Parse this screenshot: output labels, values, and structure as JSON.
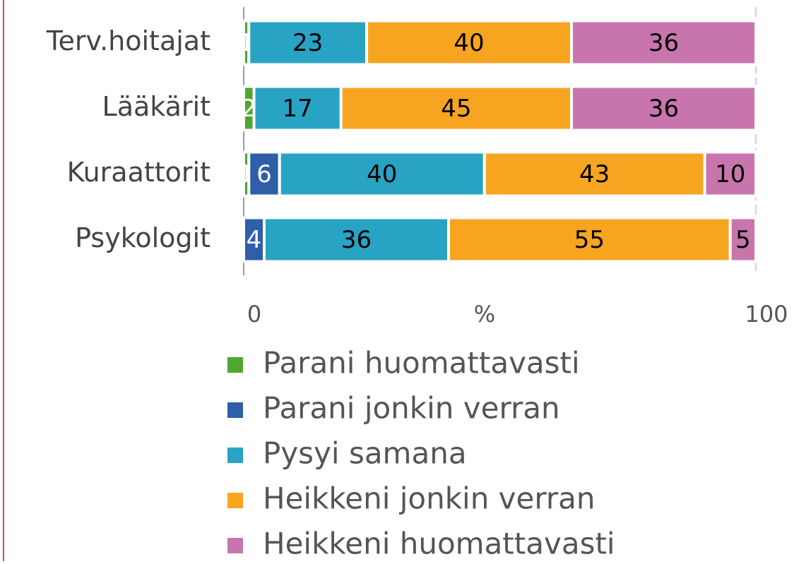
{
  "chart_data": {
    "type": "stacked_barh",
    "categories": [
      "Terv.hoitajat",
      "Lääkärit",
      "Kuraattorit",
      "Psykologit"
    ],
    "series": [
      {
        "name": "Parani huomattavasti",
        "color": "#4ea72e",
        "label_color": "#ffffff",
        "values": [
          1,
          2,
          1,
          null
        ]
      },
      {
        "name": "Parani jonkin verran",
        "color": "#2e5fa8",
        "label_color": "#ffffff",
        "values": [
          null,
          null,
          6,
          4
        ]
      },
      {
        "name": "Pysyi samana",
        "color": "#29a3c4",
        "label_color": "#000000",
        "values": [
          23,
          17,
          40,
          36
        ]
      },
      {
        "name": "Heikkeni jonkin verran",
        "color": "#f7a520",
        "label_color": "#000000",
        "values": [
          40,
          45,
          43,
          55
        ]
      },
      {
        "name": "Heikkeni huomattavasti",
        "color": "#c875ad",
        "label_color": "#000000",
        "values": [
          36,
          36,
          10,
          5
        ]
      }
    ],
    "xlabel": "%",
    "xlim": [
      0,
      100
    ],
    "xticks": [
      0,
      100
    ],
    "grid": true,
    "legend": "bottom"
  }
}
